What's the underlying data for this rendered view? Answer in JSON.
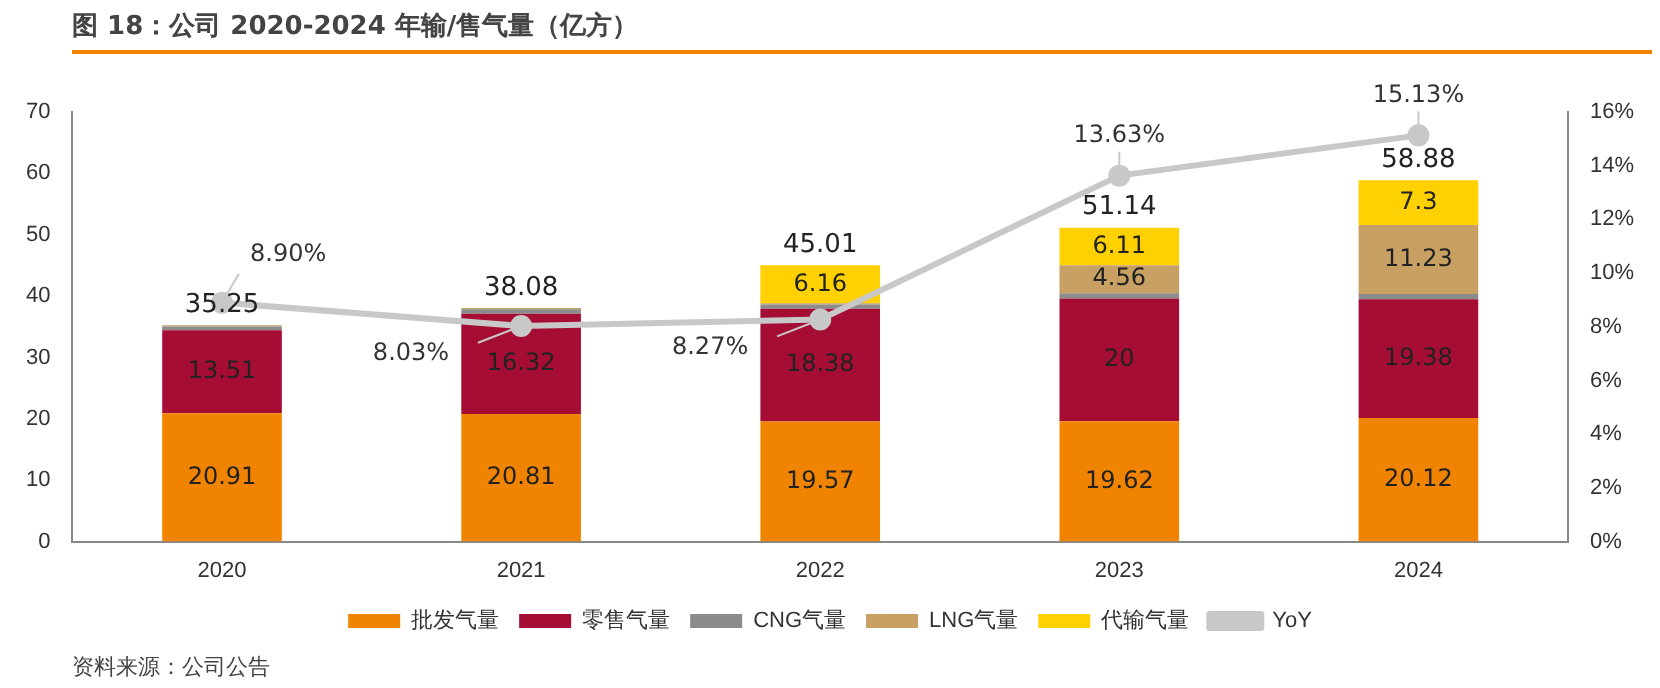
{
  "chart_data": {
    "type": "bar",
    "title": "图 18：公司 2020-2024 年输/售气量（亿方）",
    "annotations": [
      "资料来源：公司公告"
    ],
    "categories": [
      "2020",
      "2021",
      "2022",
      "2023",
      "2024"
    ],
    "stacked": true,
    "legend": "bottom",
    "grid": false,
    "ylim": [
      0,
      70
    ],
    "yticks": [
      0,
      10,
      20,
      30,
      40,
      50,
      60,
      70
    ],
    "y2lim": [
      0,
      16
    ],
    "y2ticks": [
      {
        "value": 0,
        "label": "0%"
      },
      {
        "value": 2,
        "label": "2%"
      },
      {
        "value": 4,
        "label": "4%"
      },
      {
        "value": 6,
        "label": "6%"
      },
      {
        "value": 8,
        "label": "8%"
      },
      {
        "value": 10,
        "label": "10%"
      },
      {
        "value": 12,
        "label": "12%"
      },
      {
        "value": 14,
        "label": "14%"
      },
      {
        "value": 16,
        "label": "16%"
      }
    ],
    "totals": [
      "35.25",
      "38.08",
      "45.01",
      "51.14",
      "58.88"
    ],
    "series": [
      {
        "name": "批发气量",
        "color": "#f08300",
        "values": [
          20.91,
          20.81,
          19.57,
          19.62,
          20.12
        ],
        "value_labels": [
          "20.91",
          "20.81",
          "19.57",
          "19.62",
          "20.12"
        ]
      },
      {
        "name": "零售气量",
        "color": "#a50d34",
        "values": [
          13.51,
          16.32,
          18.38,
          20,
          19.38
        ],
        "value_labels": [
          "13.51",
          "16.32",
          "18.38",
          "20",
          "19.38"
        ]
      },
      {
        "name": "CNG气量",
        "color": "#8c8c8c",
        "values": [
          0.63,
          0.75,
          0.7,
          0.85,
          0.85
        ]
      },
      {
        "name": "LNG气量",
        "color": "#c8a063",
        "values": [
          0.2,
          0.2,
          0.2,
          4.56,
          11.23
        ],
        "value_labels": [
          null,
          null,
          null,
          "4.56",
          "11.23"
        ]
      },
      {
        "name": "代输气量",
        "color": "#ffd100",
        "values": [
          null,
          null,
          6.16,
          6.11,
          7.3
        ],
        "value_labels": [
          null,
          null,
          "6.16",
          "6.11",
          "7.3"
        ]
      },
      {
        "name": "YoY",
        "type": "line",
        "axis": "y2",
        "color": "#c8c8c8",
        "marker": "circle",
        "values": [
          8.9,
          8.03,
          8.27,
          13.63,
          15.13
        ],
        "value_labels": [
          "8.90%",
          "8.03%",
          "8.27%",
          "13.63%",
          "15.13%"
        ]
      }
    ]
  }
}
